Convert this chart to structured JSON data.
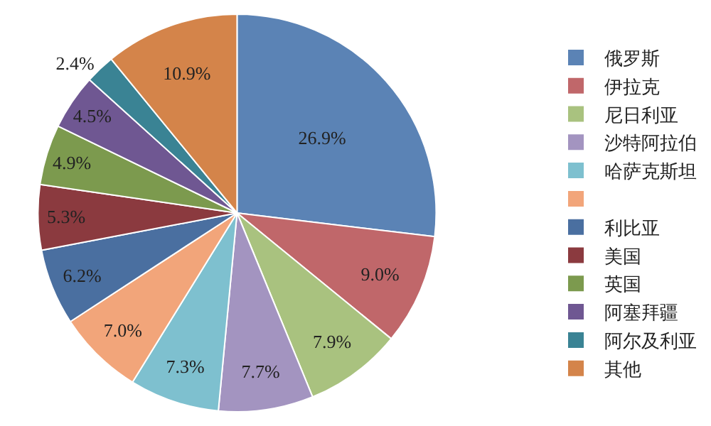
{
  "chart_data": {
    "type": "pie",
    "categories": [
      "俄罗斯",
      "伊拉克",
      "尼日利亚",
      "沙特阿拉伯",
      "哈萨克斯坦",
      null,
      "利比亚",
      "美国",
      "英国",
      "阿塞拜疆",
      "阿尔及利亚",
      "其他"
    ],
    "values": [
      26.9,
      9.0,
      7.9,
      7.7,
      7.3,
      7.0,
      6.2,
      5.3,
      4.9,
      4.5,
      2.4,
      10.9
    ],
    "value_labels": [
      "26.9%",
      "9.0%",
      "7.9%",
      "7.7%",
      "7.3%",
      "7.0%",
      "6.2%",
      "5.3%",
      "4.9%",
      "4.5%",
      "2.4%",
      "10.9%"
    ],
    "colors": [
      "#5b83b5",
      "#c0676a",
      "#a9c27f",
      "#a394c0",
      "#7ec0cf",
      "#f2a57a",
      "#4a6fa0",
      "#8b3a3f",
      "#7c9a4e",
      "#6f5792",
      "#3a8394",
      "#d4844a"
    ],
    "legend": "right"
  }
}
